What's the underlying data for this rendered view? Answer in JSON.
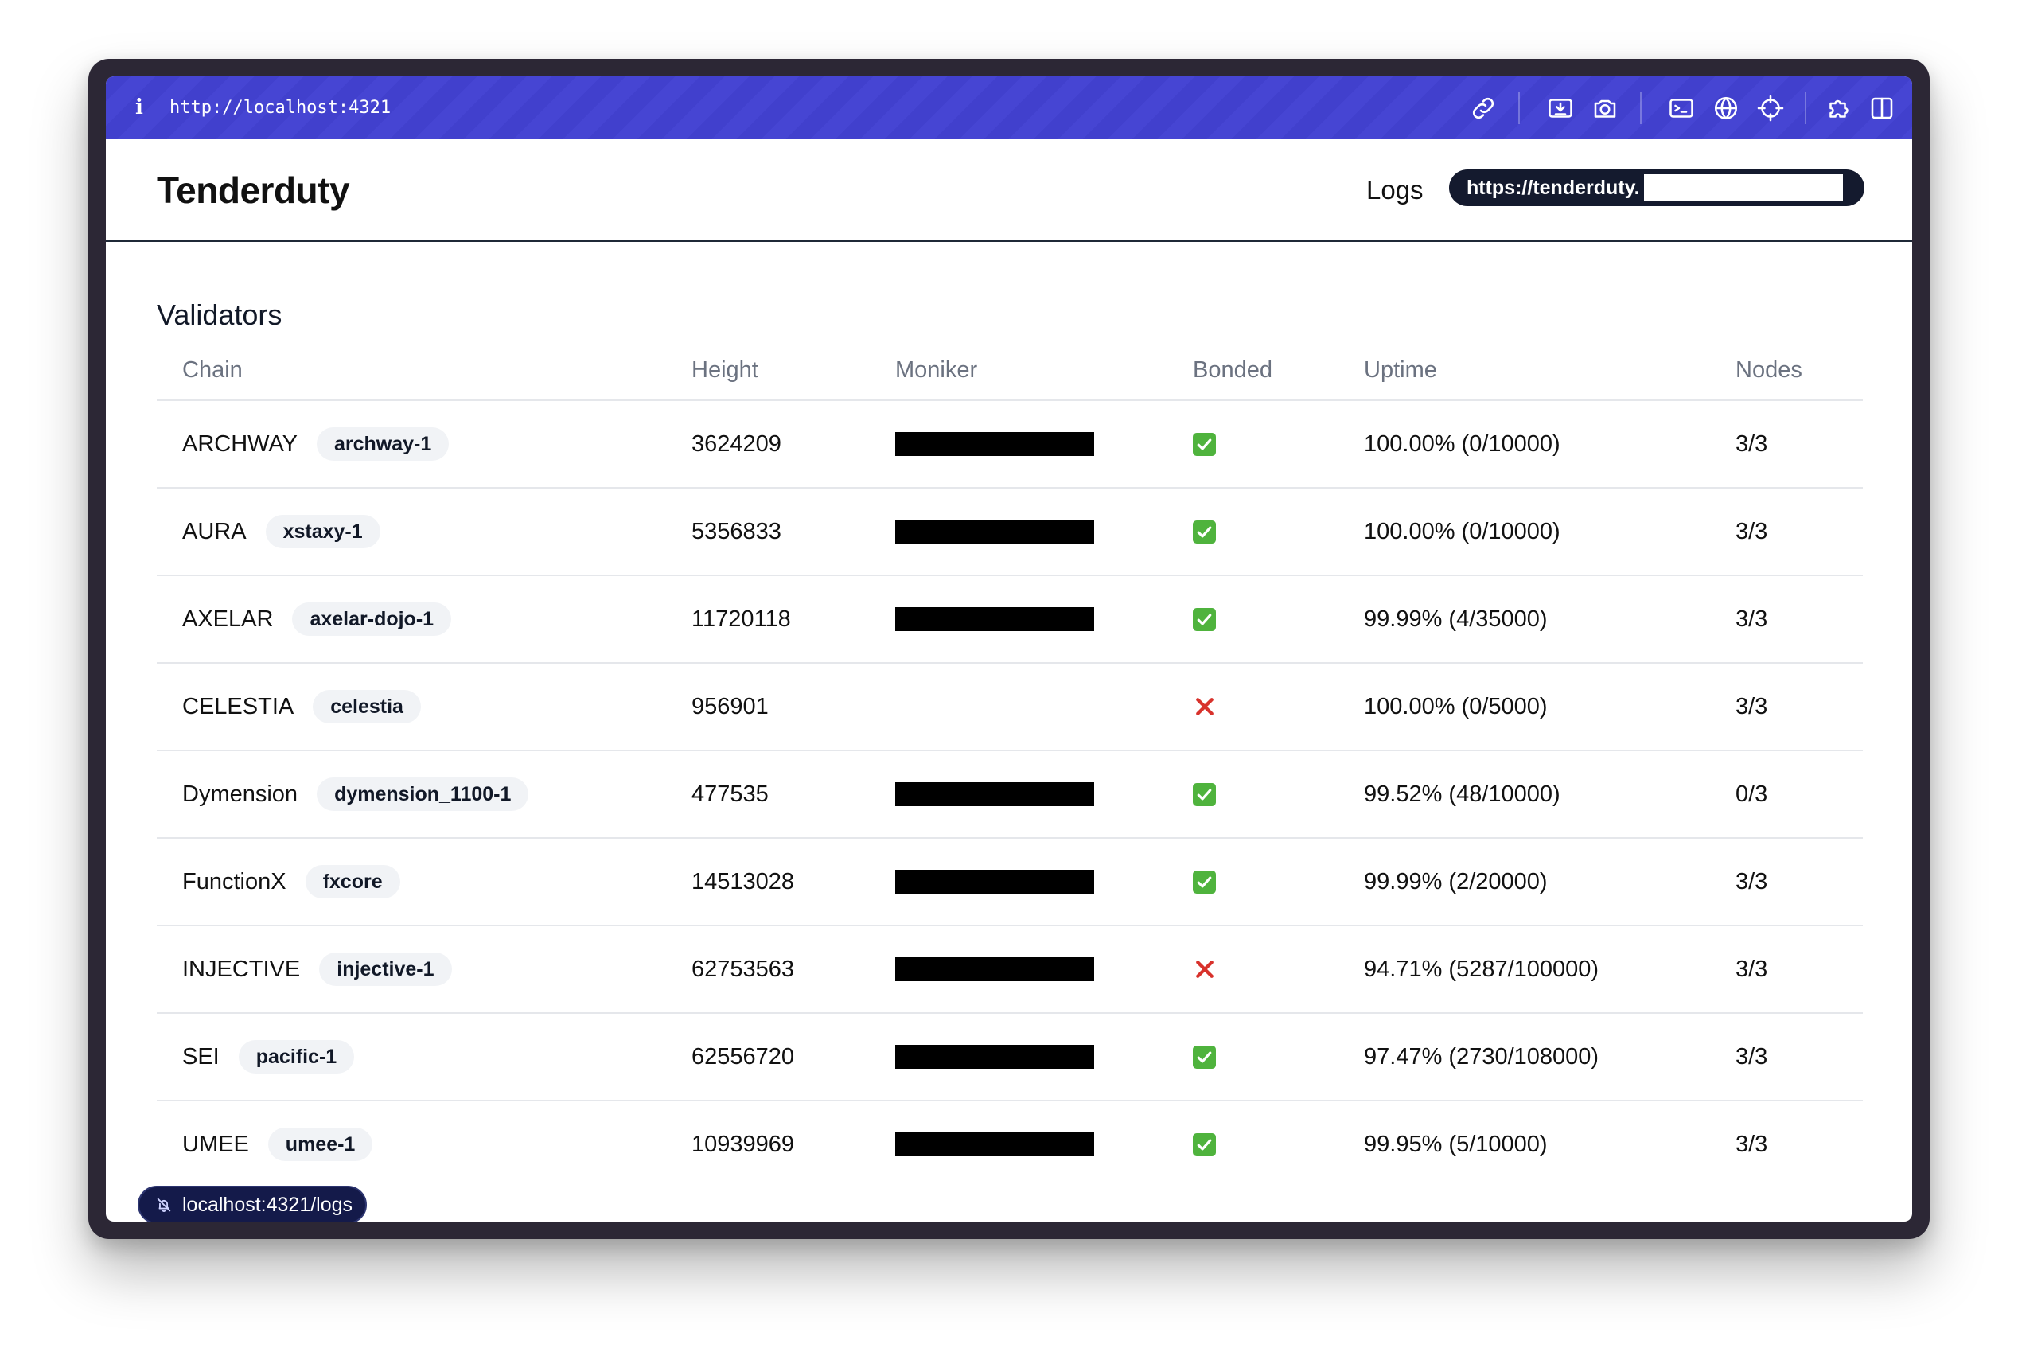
{
  "browser": {
    "url": "http://localhost:4321",
    "icons": [
      "info-icon",
      "link-icon",
      "download-panel-icon",
      "camera-icon",
      "terminal-icon",
      "globe-icon",
      "crosshair-icon",
      "puzzle-icon",
      "sidebar-icon"
    ],
    "accent_color": "#4140cd"
  },
  "header": {
    "brand": "Tenderduty",
    "logs_label": "Logs",
    "logs_url_visible": "https://tenderduty."
  },
  "validators": {
    "title": "Validators",
    "columns": {
      "chain": "Chain",
      "height": "Height",
      "moniker": "Moniker",
      "bonded": "Bonded",
      "uptime": "Uptime",
      "nodes": "Nodes"
    },
    "rows": [
      {
        "chain": "ARCHWAY",
        "chain_id": "archway-1",
        "height": "3624209",
        "moniker_redacted": true,
        "bonded": true,
        "uptime": "100.00% (0/10000)",
        "nodes": "3/3"
      },
      {
        "chain": "AURA",
        "chain_id": "xstaxy-1",
        "height": "5356833",
        "moniker_redacted": true,
        "bonded": true,
        "uptime": "100.00% (0/10000)",
        "nodes": "3/3"
      },
      {
        "chain": "AXELAR",
        "chain_id": "axelar-dojo-1",
        "height": "11720118",
        "moniker_redacted": true,
        "bonded": true,
        "uptime": "99.99% (4/35000)",
        "nodes": "3/3"
      },
      {
        "chain": "CELESTIA",
        "chain_id": "celestia",
        "height": "956901",
        "moniker_redacted": false,
        "bonded": false,
        "uptime": "100.00% (0/5000)",
        "nodes": "3/3"
      },
      {
        "chain": "Dymension",
        "chain_id": "dymension_1100-1",
        "height": "477535",
        "moniker_redacted": true,
        "bonded": true,
        "uptime": "99.52% (48/10000)",
        "nodes": "0/3"
      },
      {
        "chain": "FunctionX",
        "chain_id": "fxcore",
        "height": "14513028",
        "moniker_redacted": true,
        "bonded": true,
        "uptime": "99.99% (2/20000)",
        "nodes": "3/3"
      },
      {
        "chain": "INJECTIVE",
        "chain_id": "injective-1",
        "height": "62753563",
        "moniker_redacted": true,
        "bonded": false,
        "uptime": "94.71% (5287/100000)",
        "nodes": "3/3"
      },
      {
        "chain": "SEI",
        "chain_id": "pacific-1",
        "height": "62556720",
        "moniker_redacted": true,
        "bonded": true,
        "uptime": "97.47% (2730/108000)",
        "nodes": "3/3"
      },
      {
        "chain": "UMEE",
        "chain_id": "umee-1",
        "height": "10939969",
        "moniker_redacted": true,
        "bonded": true,
        "uptime": "99.95% (5/10000)",
        "nodes": "3/3"
      }
    ]
  },
  "status_link": {
    "text": "localhost:4321/logs",
    "icon": "bell-off-icon"
  },
  "colors": {
    "bonded_true": "#4fb33d",
    "bonded_false": "#d8322c",
    "dark_pill": "#141a2e"
  }
}
